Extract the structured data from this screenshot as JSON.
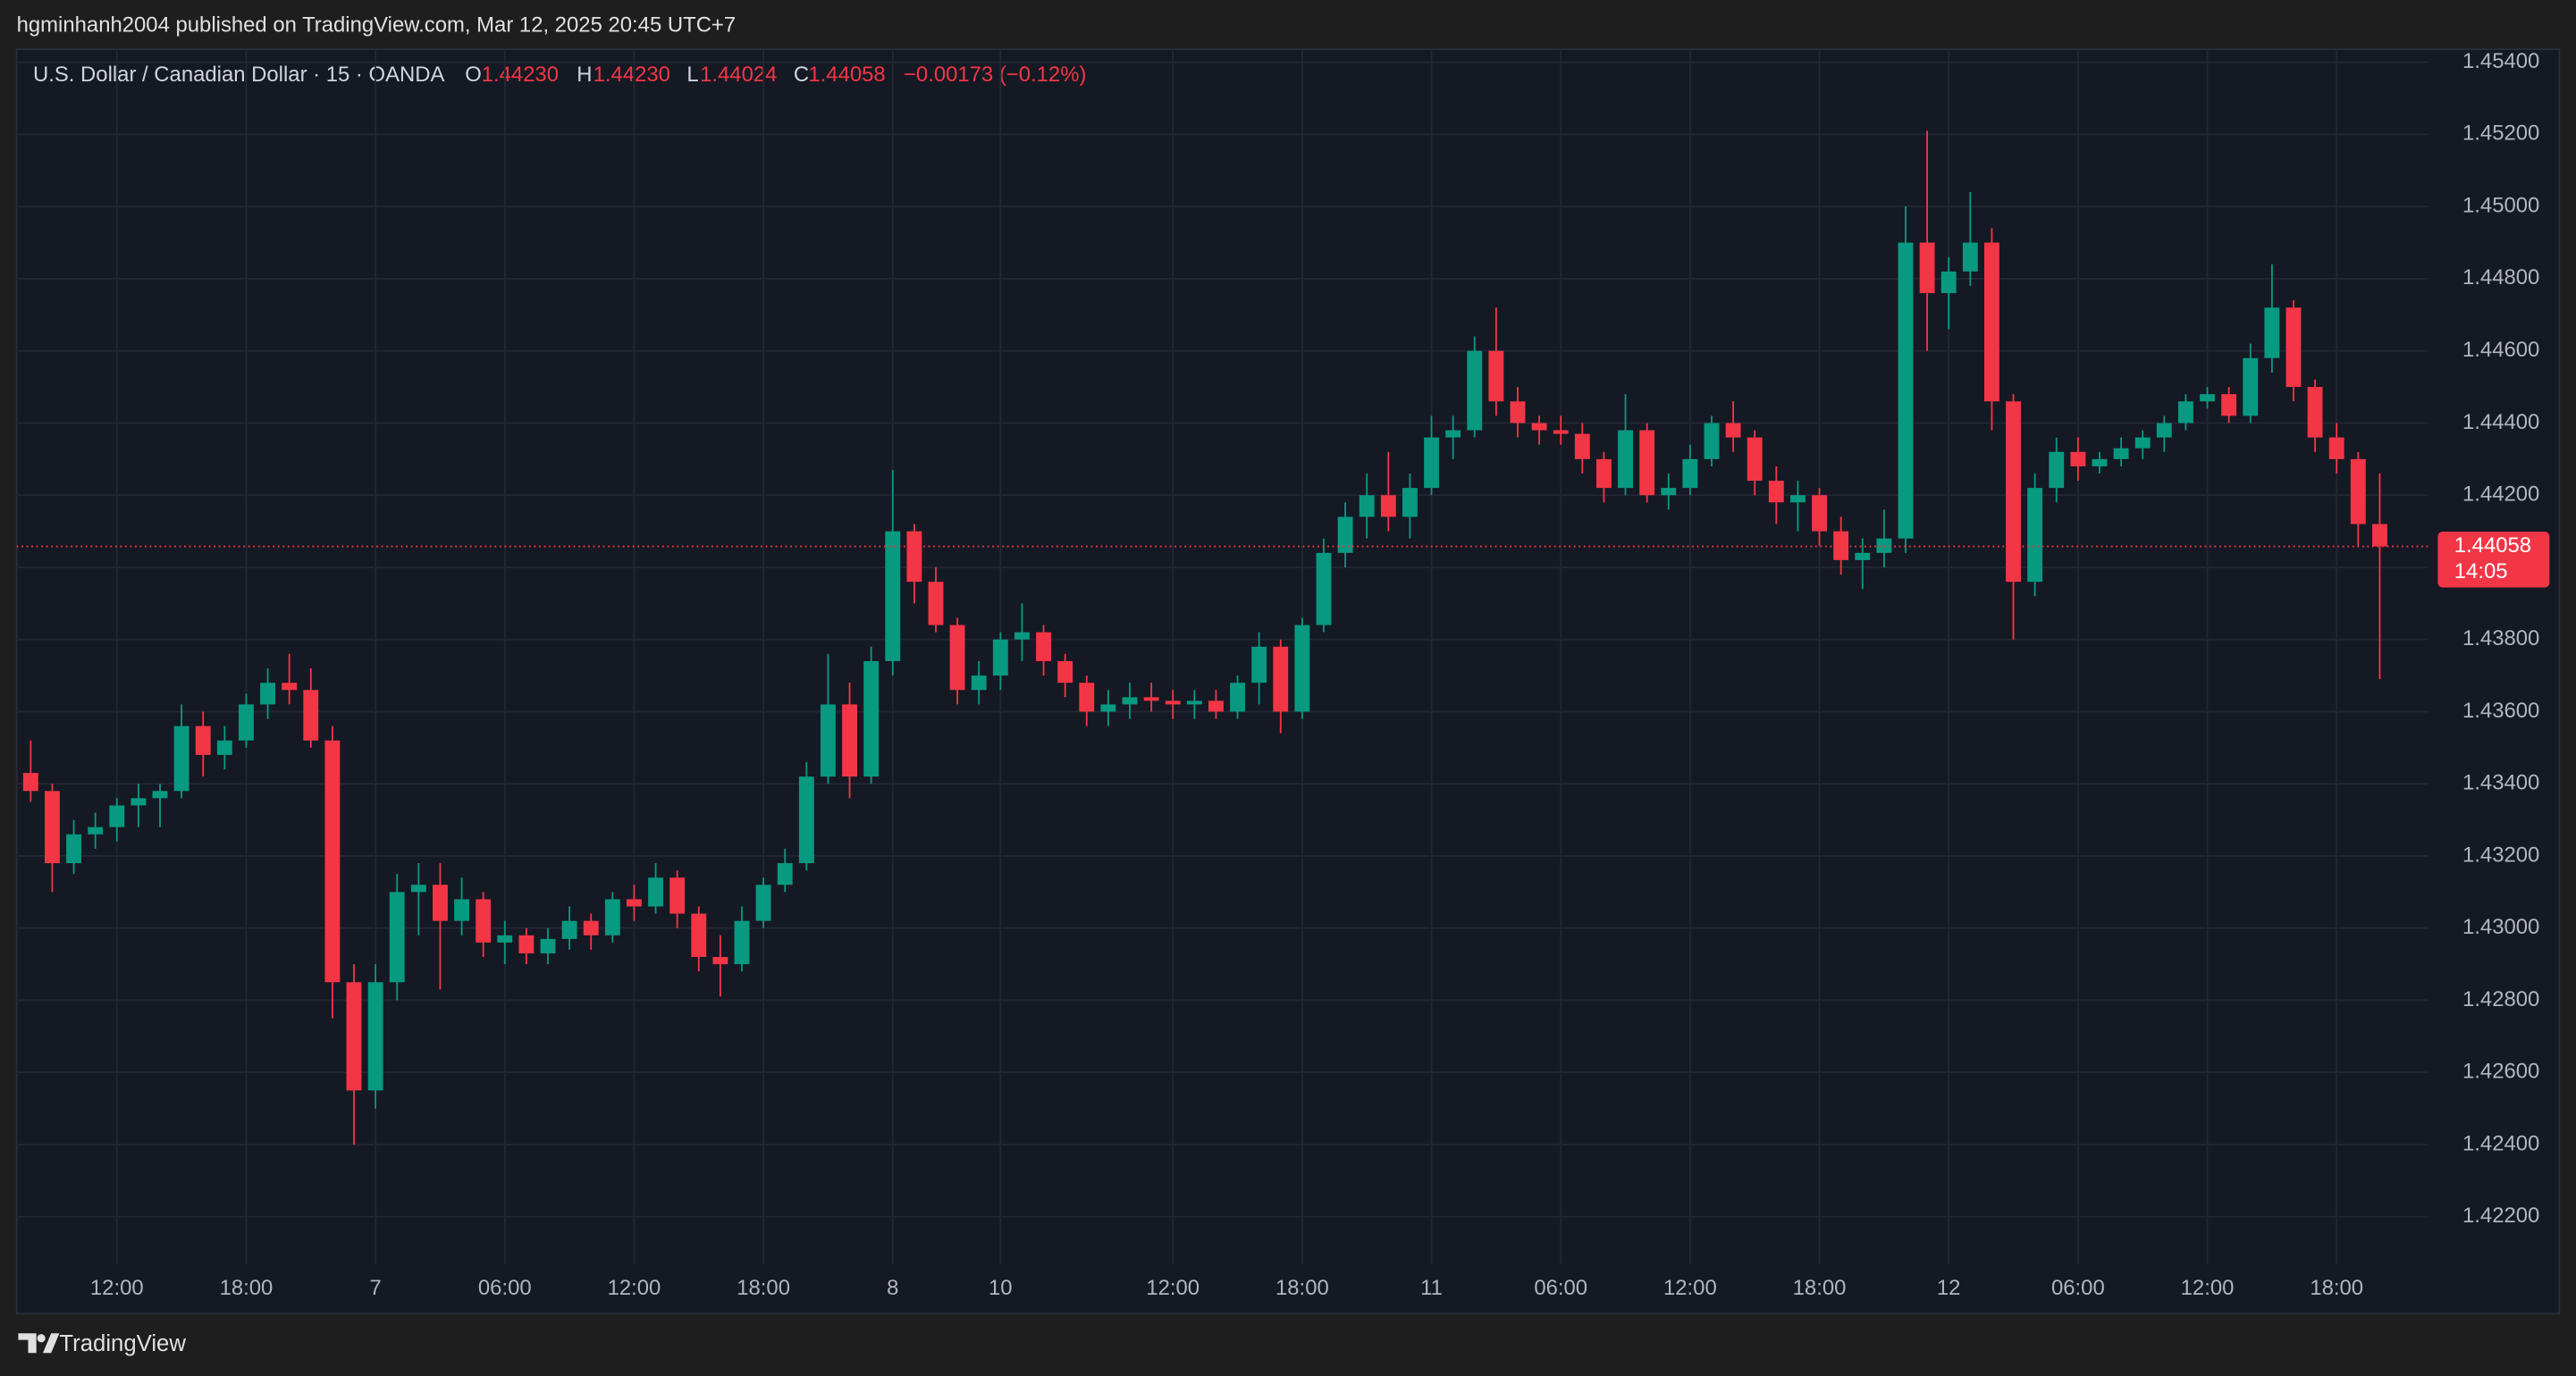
{
  "header": {
    "publisher": "hgminhanh2004 published on TradingView.com, Mar 12, 2025 20:45 UTC+7"
  },
  "chart_data": {
    "type": "candlestick",
    "title": "U.S. Dollar / Canadian Dollar · 15 · OANDA",
    "ohlc_labels": [
      "O",
      "H",
      "L",
      "C"
    ],
    "ohlc_values": [
      {
        "value": 1.4423,
        "label": "1.44230"
      },
      {
        "value": 1.4423,
        "label": "1.44230"
      },
      {
        "value": 1.44024,
        "label": "1.44024"
      },
      {
        "value": 1.44058,
        "label": "1.44058"
      }
    ],
    "change": "−0.00173 (−0.12%)",
    "last_price": {
      "value": 1.44058,
      "label": "1.44058"
    },
    "countdown": "14:05",
    "up_color": "#089981",
    "down_color": "#f23645",
    "grid": true,
    "categories": [
      null,
      null,
      null,
      null,
      "12:00",
      null,
      null,
      null,
      null,
      null,
      "18:00",
      null,
      null,
      null,
      null,
      null,
      "7",
      null,
      null,
      null,
      null,
      null,
      "06:00",
      null,
      null,
      null,
      null,
      null,
      "12:00",
      null,
      null,
      null,
      null,
      null,
      "18:00",
      null,
      null,
      null,
      null,
      null,
      "8",
      null,
      null,
      null,
      null,
      "10",
      null,
      null,
      null,
      null,
      null,
      null,
      null,
      "12:00",
      null,
      null,
      null,
      null,
      null,
      "18:00",
      null,
      null,
      null,
      null,
      null,
      "11",
      null,
      null,
      null,
      null,
      null,
      "06:00",
      null,
      null,
      null,
      null,
      null,
      "12:00",
      null,
      null,
      null,
      null,
      null,
      "18:00",
      null,
      null,
      null,
      null,
      null,
      "12",
      null,
      null,
      null,
      null,
      null,
      "06:00",
      null,
      null,
      null,
      null,
      null,
      "12:00",
      null,
      null,
      null,
      null,
      null,
      "18:00",
      null,
      null
    ],
    "open": [
      1.4343,
      1.4338,
      1.4318,
      1.4326,
      1.4328,
      1.4334,
      1.4336,
      1.4338,
      1.4356,
      1.4348,
      1.4352,
      1.4362,
      1.4368,
      1.4366,
      1.4352,
      1.4285,
      1.4255,
      1.4285,
      1.431,
      1.4312,
      1.4302,
      1.4308,
      1.4296,
      1.4298,
      1.4293,
      1.4297,
      1.4302,
      1.4298,
      1.4308,
      1.4306,
      1.4314,
      1.4304,
      1.4292,
      1.429,
      1.4302,
      1.4312,
      1.4318,
      1.4342,
      1.4362,
      1.4342,
      1.4374,
      1.441,
      1.4396,
      1.4384,
      1.4366,
      1.437,
      1.438,
      1.4382,
      1.4374,
      1.4368,
      1.436,
      1.4362,
      1.4364,
      1.4363,
      1.4362,
      1.4363,
      1.436,
      1.4368,
      1.4378,
      1.436,
      1.4384,
      1.4404,
      1.4414,
      1.442,
      1.4414,
      1.4422,
      1.4436,
      1.4438,
      1.446,
      1.4446,
      1.444,
      1.4438,
      1.4437,
      1.443,
      1.4422,
      1.4438,
      1.442,
      1.4422,
      1.443,
      1.444,
      1.4436,
      1.4424,
      1.4418,
      1.442,
      1.441,
      1.4402,
      1.4404,
      1.4408,
      1.449,
      1.4476,
      1.4482,
      1.449,
      1.4446,
      1.4396,
      1.4422,
      1.4432,
      1.4428,
      1.443,
      1.4433,
      1.4436,
      1.444,
      1.4446,
      1.4448,
      1.4442,
      1.4458,
      1.4472,
      1.445,
      1.4436,
      1.443,
      1.4412
    ],
    "high": [
      1.4352,
      1.434,
      1.433,
      1.4332,
      1.4336,
      1.434,
      1.434,
      1.4362,
      1.436,
      1.4356,
      1.4365,
      1.4372,
      1.4376,
      1.4372,
      1.4356,
      1.429,
      1.429,
      1.4315,
      1.4318,
      1.4318,
      1.4314,
      1.431,
      1.4302,
      1.43,
      1.43,
      1.4306,
      1.4304,
      1.431,
      1.4312,
      1.4318,
      1.4316,
      1.4306,
      1.4298,
      1.4306,
      1.4314,
      1.4322,
      1.4346,
      1.4376,
      1.4368,
      1.4378,
      1.4427,
      1.4412,
      1.44,
      1.4386,
      1.4374,
      1.4382,
      1.439,
      1.4384,
      1.4376,
      1.437,
      1.4366,
      1.4368,
      1.4368,
      1.4366,
      1.4366,
      1.4366,
      1.437,
      1.4382,
      1.438,
      1.4386,
      1.4408,
      1.4418,
      1.4426,
      1.4432,
      1.4426,
      1.4442,
      1.4442,
      1.4464,
      1.4472,
      1.445,
      1.4442,
      1.4442,
      1.444,
      1.4432,
      1.4448,
      1.444,
      1.4426,
      1.4434,
      1.4442,
      1.4446,
      1.4438,
      1.4428,
      1.4424,
      1.4422,
      1.4414,
      1.4408,
      1.4416,
      1.45,
      1.4521,
      1.4486,
      1.4504,
      1.4494,
      1.4448,
      1.4426,
      1.4436,
      1.4436,
      1.4432,
      1.4436,
      1.4438,
      1.4442,
      1.4448,
      1.445,
      1.445,
      1.4462,
      1.4484,
      1.4474,
      1.4452,
      1.444,
      1.4432,
      1.4426
    ],
    "low": [
      1.4335,
      1.431,
      1.4315,
      1.4322,
      1.4324,
      1.4328,
      1.4328,
      1.4336,
      1.4342,
      1.4344,
      1.435,
      1.4358,
      1.4362,
      1.435,
      1.4275,
      1.424,
      1.425,
      1.428,
      1.4298,
      1.4283,
      1.4298,
      1.4292,
      1.429,
      1.429,
      1.429,
      1.4294,
      1.4294,
      1.4296,
      1.4302,
      1.4304,
      1.43,
      1.4288,
      1.4281,
      1.4288,
      1.43,
      1.431,
      1.4316,
      1.434,
      1.4336,
      1.434,
      1.437,
      1.439,
      1.4382,
      1.4362,
      1.4362,
      1.4366,
      1.4374,
      1.437,
      1.4364,
      1.4356,
      1.4356,
      1.4358,
      1.436,
      1.4358,
      1.4358,
      1.4358,
      1.4358,
      1.4362,
      1.4354,
      1.4358,
      1.4382,
      1.44,
      1.4408,
      1.441,
      1.4408,
      1.442,
      1.443,
      1.4436,
      1.4442,
      1.4436,
      1.4434,
      1.4434,
      1.4426,
      1.4418,
      1.442,
      1.4418,
      1.4416,
      1.442,
      1.4428,
      1.4432,
      1.442,
      1.4412,
      1.441,
      1.4406,
      1.4398,
      1.4394,
      1.44,
      1.4404,
      1.446,
      1.4466,
      1.4478,
      1.4438,
      1.438,
      1.4392,
      1.4418,
      1.4424,
      1.4426,
      1.4428,
      1.443,
      1.4432,
      1.4438,
      1.4444,
      1.444,
      1.444,
      1.4454,
      1.4446,
      1.4432,
      1.4426,
      1.4406,
      1.4369
    ],
    "close": [
      1.4338,
      1.4318,
      1.4326,
      1.4328,
      1.4334,
      1.4336,
      1.4338,
      1.4356,
      1.4348,
      1.4352,
      1.4362,
      1.4368,
      1.4366,
      1.4352,
      1.4285,
      1.4255,
      1.4285,
      1.431,
      1.4312,
      1.4302,
      1.4308,
      1.4296,
      1.4298,
      1.4293,
      1.4297,
      1.4302,
      1.4298,
      1.4308,
      1.4306,
      1.4314,
      1.4304,
      1.4292,
      1.429,
      1.4302,
      1.4312,
      1.4318,
      1.4342,
      1.4362,
      1.4342,
      1.4374,
      1.441,
      1.4396,
      1.4384,
      1.4366,
      1.437,
      1.438,
      1.4382,
      1.4374,
      1.4368,
      1.436,
      1.4362,
      1.4364,
      1.4363,
      1.4362,
      1.4363,
      1.436,
      1.4368,
      1.4378,
      1.436,
      1.4384,
      1.4404,
      1.4414,
      1.442,
      1.4414,
      1.4422,
      1.4436,
      1.4438,
      1.446,
      1.4446,
      1.444,
      1.4438,
      1.4437,
      1.443,
      1.4422,
      1.4438,
      1.442,
      1.4422,
      1.443,
      1.444,
      1.4436,
      1.4424,
      1.4418,
      1.442,
      1.441,
      1.4402,
      1.4404,
      1.4408,
      1.449,
      1.4476,
      1.4482,
      1.449,
      1.4446,
      1.4396,
      1.4422,
      1.4432,
      1.4428,
      1.443,
      1.4433,
      1.4436,
      1.444,
      1.4446,
      1.4448,
      1.4442,
      1.4458,
      1.4472,
      1.445,
      1.4436,
      1.443,
      1.4412,
      1.44058
    ],
    "ylim": [
      1.42068,
      1.45436
    ],
    "yticks": [
      {
        "value": 1.422,
        "label": "1.42200"
      },
      {
        "value": 1.424,
        "label": "1.42400"
      },
      {
        "value": 1.426,
        "label": "1.42600"
      },
      {
        "value": 1.428,
        "label": "1.42800"
      },
      {
        "value": 1.43,
        "label": "1.43000"
      },
      {
        "value": 1.432,
        "label": "1.43200"
      },
      {
        "value": 1.434,
        "label": "1.43400"
      },
      {
        "value": 1.436,
        "label": "1.43600"
      },
      {
        "value": 1.438,
        "label": "1.43800"
      },
      {
        "value": 1.44,
        "label": "1.44000"
      },
      {
        "value": 1.442,
        "label": "1.44200"
      },
      {
        "value": 1.444,
        "label": "1.44400"
      },
      {
        "value": 1.446,
        "label": "1.44600"
      },
      {
        "value": 1.448,
        "label": "1.44800"
      },
      {
        "value": 1.45,
        "label": "1.45000"
      },
      {
        "value": 1.452,
        "label": "1.45200"
      },
      {
        "value": 1.454,
        "label": "1.45400"
      }
    ]
  },
  "footer": {
    "brand": "TradingView"
  }
}
